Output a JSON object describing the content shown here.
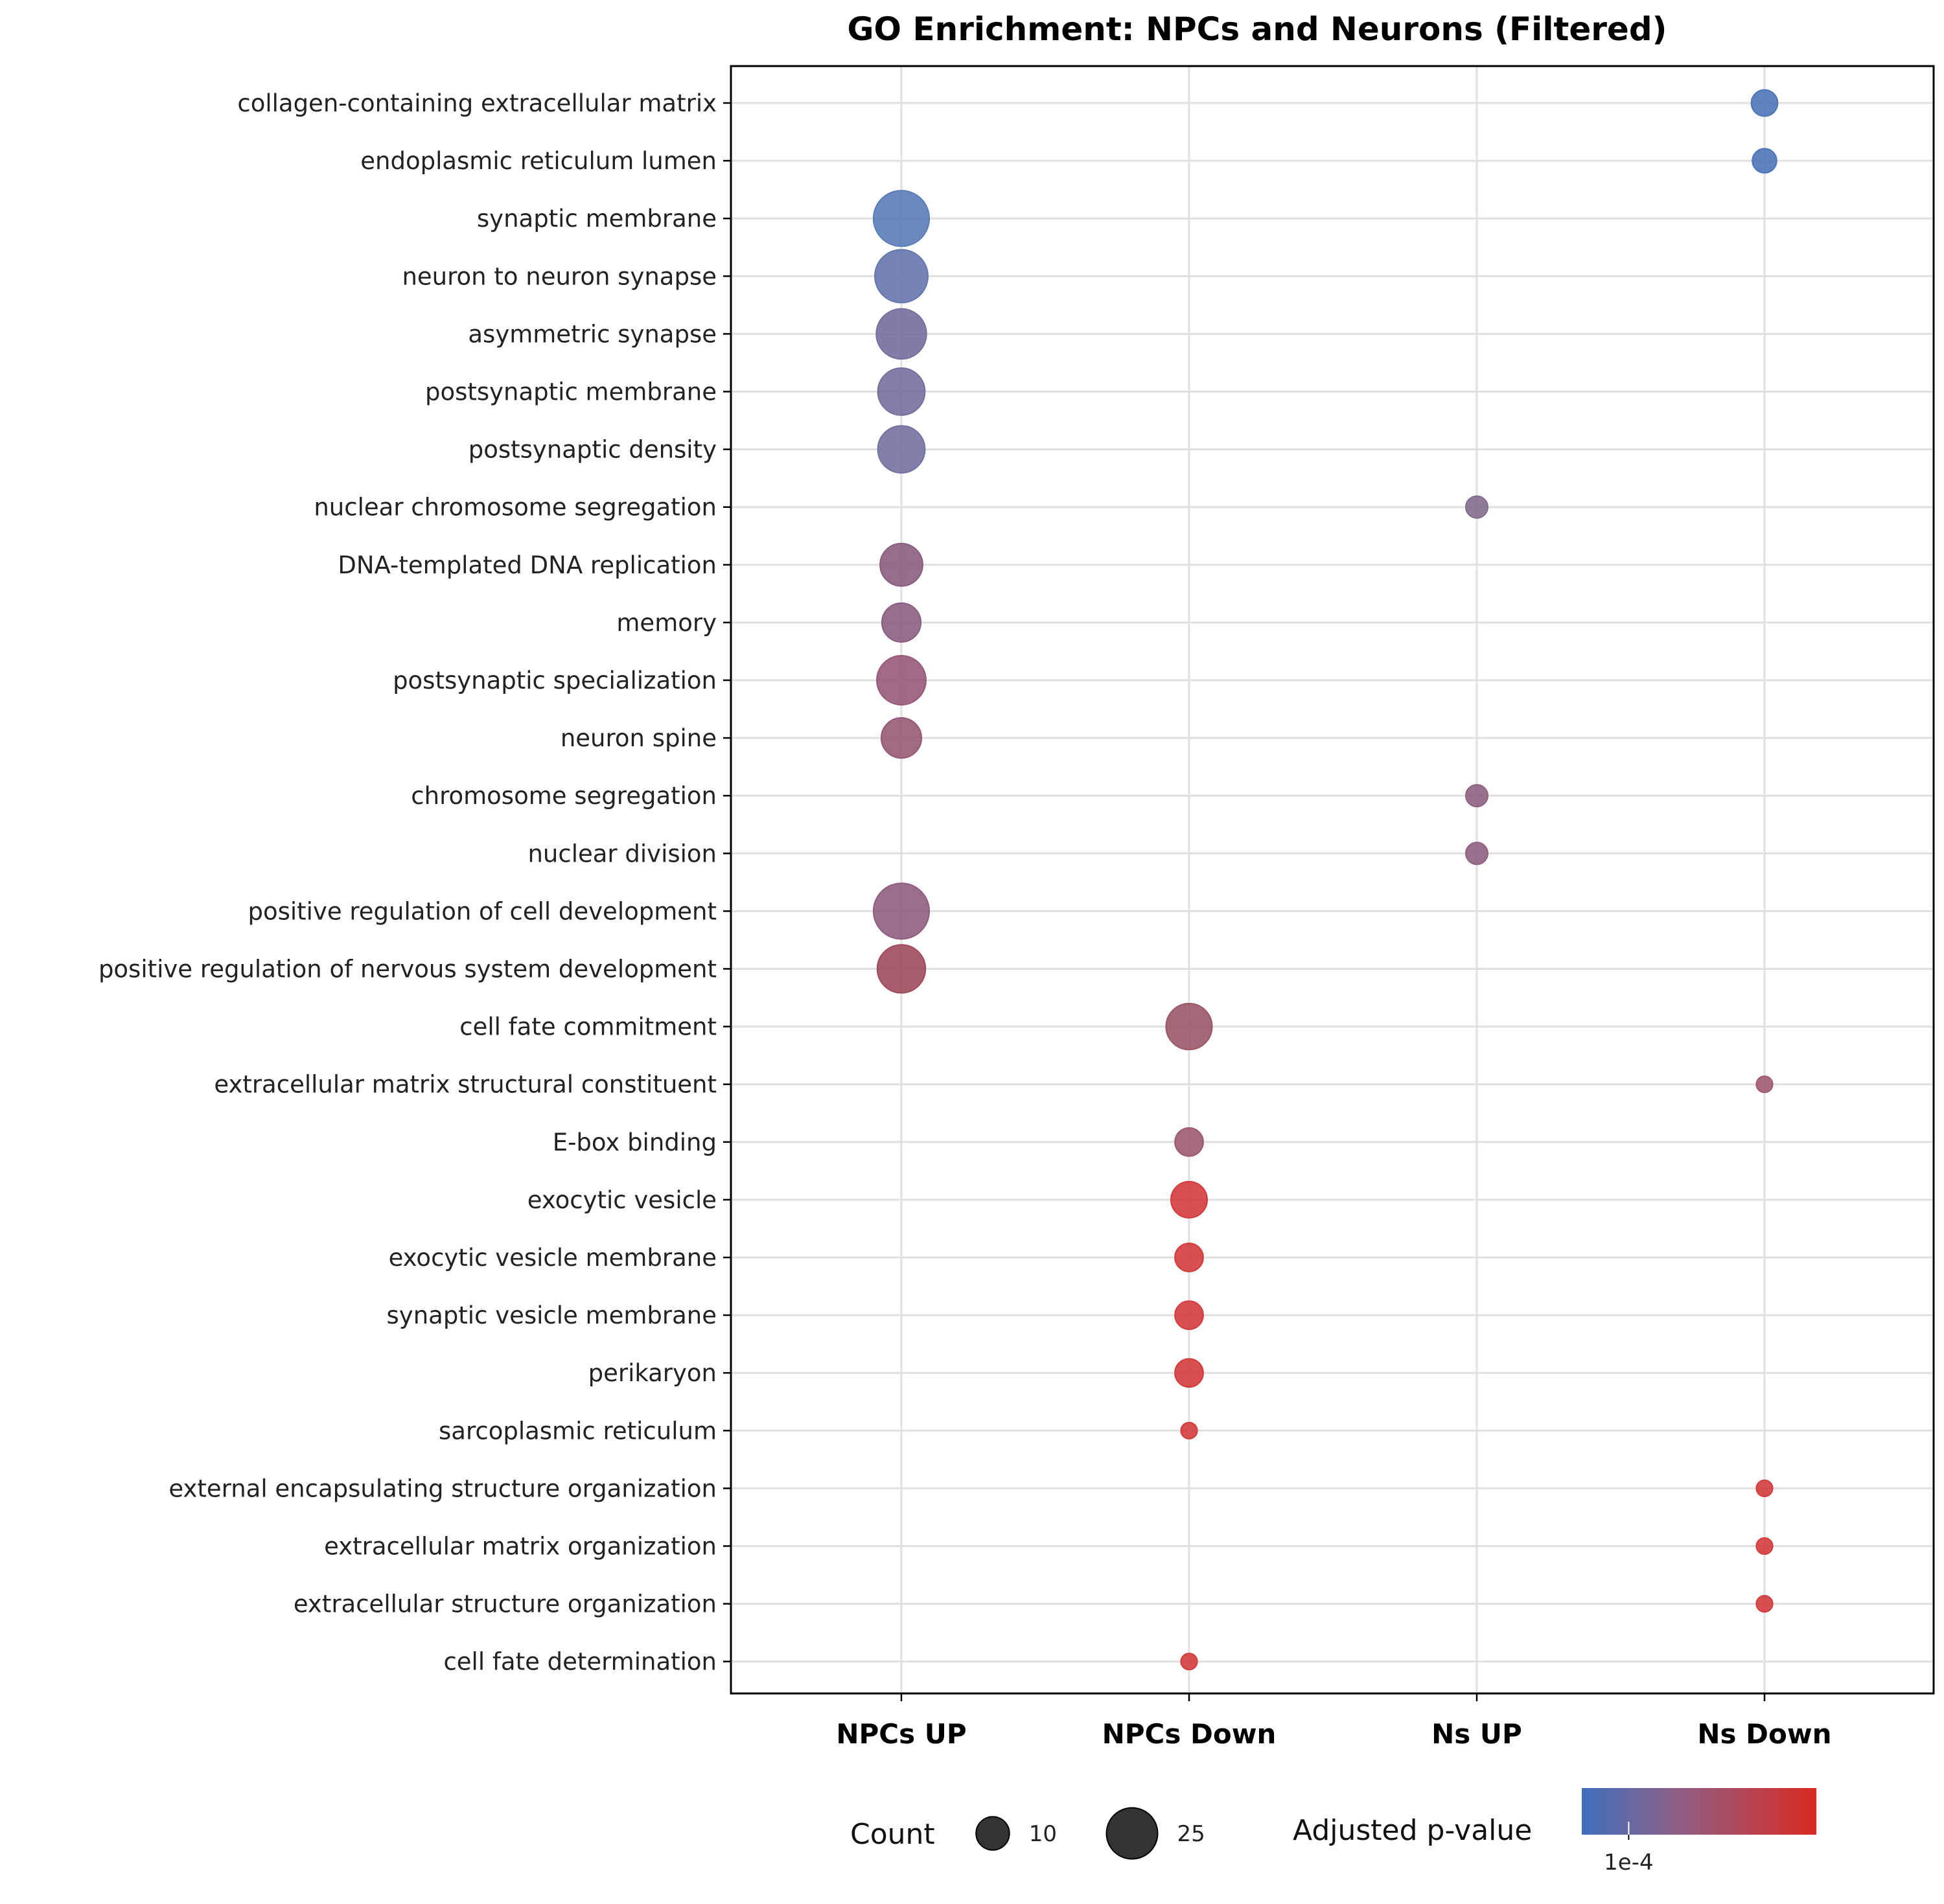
{
  "chart_data": {
    "type": "scatter",
    "title": "GO Enrichment: NPCs and Neurons (Filtered)",
    "xlabel": "",
    "ylabel": "",
    "grid": true,
    "categories": [
      "NPCs UP",
      "NPCs Down",
      "Ns UP",
      "Ns Down"
    ],
    "terms": [
      "collagen-containing extracellular matrix",
      "endoplasmic reticulum lumen",
      "synaptic membrane",
      "neuron to neuron synapse",
      "asymmetric synapse",
      "postsynaptic membrane",
      "postsynaptic density",
      "nuclear chromosome segregation",
      "DNA-templated DNA replication",
      "memory",
      "postsynaptic specialization",
      "neuron spine",
      "chromosome segregation",
      "nuclear division",
      "positive regulation of cell development",
      "positive regulation of nervous system development",
      "cell fate commitment",
      "extracellular matrix structural constituent",
      "E-box binding",
      "exocytic vesicle",
      "exocytic vesicle membrane",
      "synaptic vesicle membrane",
      "perikaryon",
      "sarcoplasmic reticulum",
      "external encapsulating structure organization",
      "extracellular matrix organization",
      "extracellular structure organization",
      "cell fate determination"
    ],
    "points": [
      {
        "term": "collagen-containing extracellular matrix",
        "group": "Ns Down",
        "count": 6,
        "color": "#4c76b8"
      },
      {
        "term": "endoplasmic reticulum lumen",
        "group": "Ns Down",
        "count": 5,
        "color": "#4c76b8"
      },
      {
        "term": "synaptic membrane",
        "group": "NPCs UP",
        "count": 30,
        "color": "#5a7db8"
      },
      {
        "term": "neuron to neuron synapse",
        "group": "NPCs UP",
        "count": 27,
        "color": "#6677ae"
      },
      {
        "term": "asymmetric synapse",
        "group": "NPCs UP",
        "count": 24,
        "color": "#766e9d"
      },
      {
        "term": "postsynaptic membrane",
        "group": "NPCs UP",
        "count": 21,
        "color": "#76709f"
      },
      {
        "term": "postsynaptic density",
        "group": "NPCs UP",
        "count": 21,
        "color": "#7472a2"
      },
      {
        "term": "nuclear chromosome segregation",
        "group": "Ns UP",
        "count": 4,
        "color": "#826c8e"
      },
      {
        "term": "DNA-templated DNA replication",
        "group": "NPCs UP",
        "count": 17,
        "color": "#8b5e7d"
      },
      {
        "term": "memory",
        "group": "NPCs UP",
        "count": 14,
        "color": "#8a5f80"
      },
      {
        "term": "postsynaptic specialization",
        "group": "NPCs UP",
        "count": 23,
        "color": "#965a78"
      },
      {
        "term": "neuron spine",
        "group": "NPCs UP",
        "count": 15,
        "color": "#975a75"
      },
      {
        "term": "chromosome segregation",
        "group": "Ns UP",
        "count": 4,
        "color": "#8d6281"
      },
      {
        "term": "nuclear division",
        "group": "Ns UP",
        "count": 4,
        "color": "#8e6281"
      },
      {
        "term": "positive regulation of cell development",
        "group": "NPCs UP",
        "count": 30,
        "color": "#905e80"
      },
      {
        "term": "positive regulation of nervous system development",
        "group": "NPCs UP",
        "count": 22,
        "color": "#a04b5c"
      },
      {
        "term": "cell fate commitment",
        "group": "NPCs Down",
        "count": 20,
        "color": "#9a5868"
      },
      {
        "term": "extracellular matrix structural constituent",
        "group": "Ns Down",
        "count": 2,
        "color": "#a05a70"
      },
      {
        "term": "E-box binding",
        "group": "NPCs Down",
        "count": 7,
        "color": "#9e5a70"
      },
      {
        "term": "exocytic vesicle",
        "group": "NPCs Down",
        "count": 12,
        "color": "#d43c3c"
      },
      {
        "term": "exocytic vesicle membrane",
        "group": "NPCs Down",
        "count": 7,
        "color": "#d43c3c"
      },
      {
        "term": "synaptic vesicle membrane",
        "group": "NPCs Down",
        "count": 7,
        "color": "#d43c3c"
      },
      {
        "term": "perikaryon",
        "group": "NPCs Down",
        "count": 7,
        "color": "#d43c3c"
      },
      {
        "term": "sarcoplasmic reticulum",
        "group": "NPCs Down",
        "count": 2,
        "color": "#d43c3c"
      },
      {
        "term": "external encapsulating structure organization",
        "group": "Ns Down",
        "count": 2,
        "color": "#d43c3c"
      },
      {
        "term": "extracellular matrix organization",
        "group": "Ns Down",
        "count": 2,
        "color": "#d43c3c"
      },
      {
        "term": "extracellular structure organization",
        "group": "Ns Down",
        "count": 2,
        "color": "#d43c3c"
      },
      {
        "term": "cell fate determination",
        "group": "NPCs Down",
        "count": 2,
        "color": "#d43c3c"
      }
    ],
    "size_legend": {
      "title": "Count",
      "entries": [
        {
          "label": "10",
          "value": 10
        },
        {
          "label": "25",
          "value": 25
        }
      ]
    },
    "color_legend": {
      "title": "Adjusted p-value",
      "low_color": "#3f6fbd",
      "mid_color": "#8c6088",
      "high_color": "#da2a22",
      "tick_label": "1e-4",
      "tick_fraction": 0.2
    }
  }
}
